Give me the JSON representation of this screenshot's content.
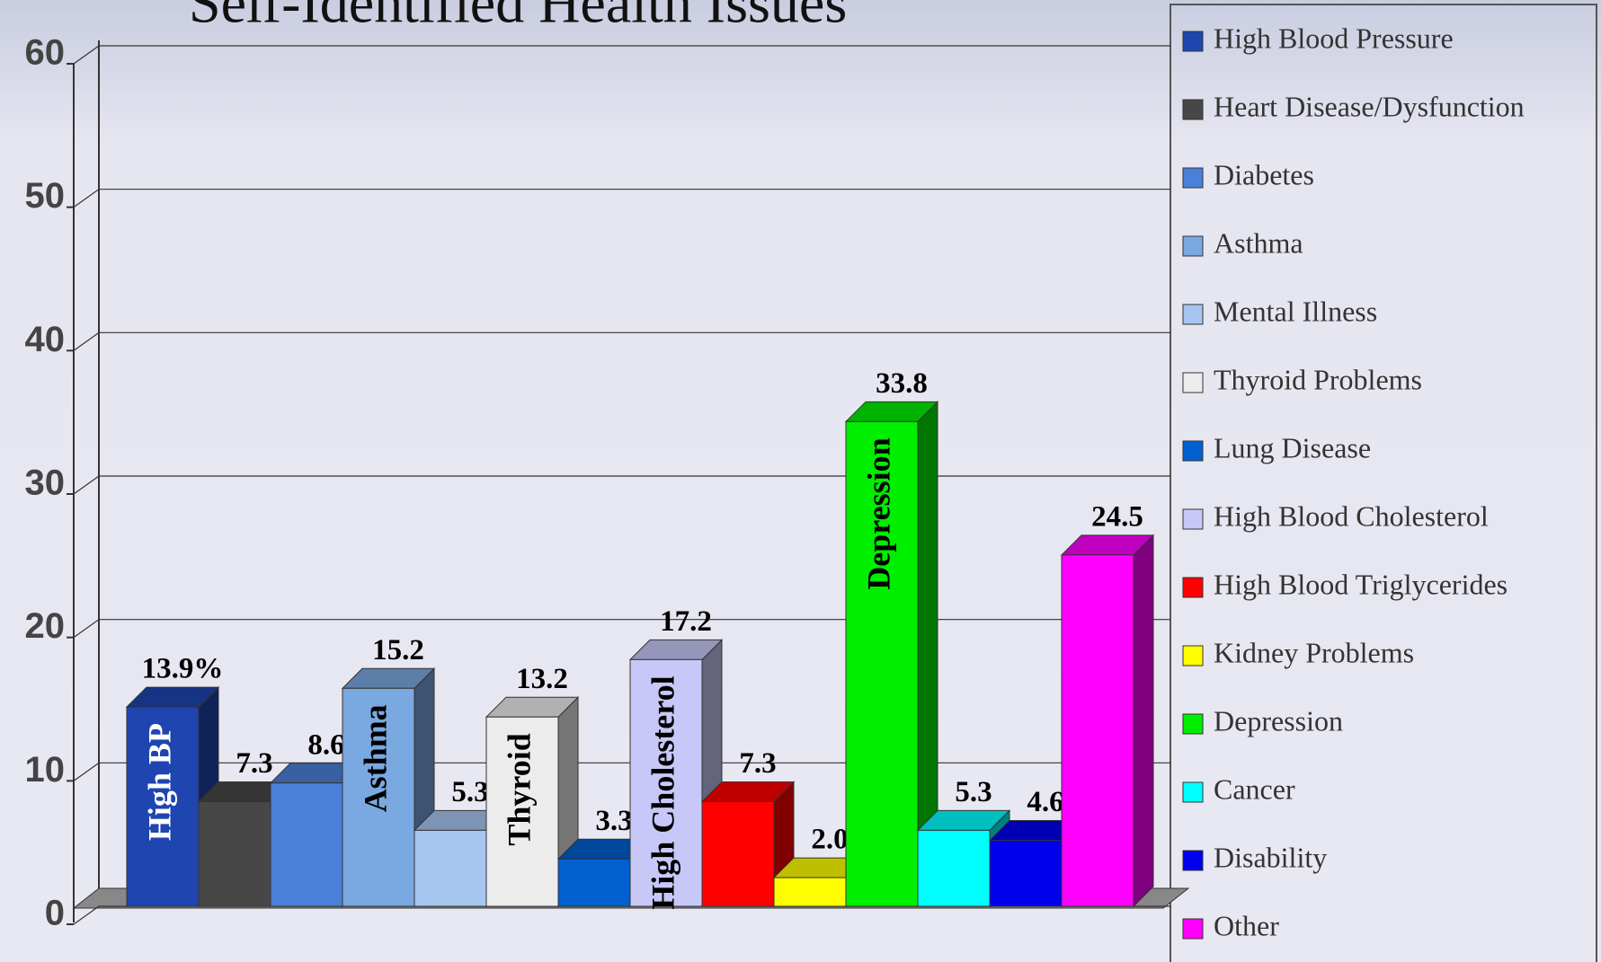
{
  "chart_data": {
    "type": "bar3d",
    "title": "Self-Identified Health Issues",
    "categories": [
      "High Blood Pressure",
      "Heart Disease/Dysfunction",
      "Diabetes",
      "Asthma",
      "Mental Illness",
      "Thyroid Problems",
      "Lung Disease",
      "High Blood Cholesterol",
      "High Blood Triglycerides",
      "Kidney Problems",
      "Depression",
      "Cancer",
      "Disability",
      "Other"
    ],
    "values": [
      13.9,
      7.3,
      8.6,
      15.2,
      5.3,
      13.2,
      3.3,
      17.2,
      7.3,
      2.0,
      33.8,
      5.3,
      4.6,
      24.5
    ],
    "value_labels": [
      "13.9%",
      "7.3",
      "8.6",
      "15.2",
      "5.3",
      "13.2",
      "3.3",
      "17.2",
      "7.3",
      "2.0",
      "33.8",
      "5.3",
      "4.6",
      "24.5"
    ],
    "colors": [
      "#1f45b0",
      "#474747",
      "#4a80d8",
      "#7aa8e0",
      "#a6c6f0",
      "#ececec",
      "#0060d0",
      "#c8c8f8",
      "#ff0000",
      "#ffff00",
      "#00ee00",
      "#00ffff",
      "#0000ee",
      "#ff00ff"
    ],
    "bar_labels": [
      "High BP",
      null,
      null,
      "Asthma",
      null,
      "Thyroid",
      null,
      "High Cholesterol",
      null,
      null,
      "Depression",
      null,
      null,
      null
    ],
    "ylim": [
      0,
      60
    ],
    "yticks": [
      0,
      10,
      20,
      30,
      40,
      50,
      60
    ],
    "grid": true,
    "legend": "right"
  }
}
